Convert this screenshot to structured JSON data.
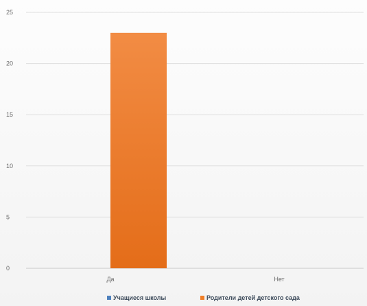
{
  "chart_data": {
    "type": "bar",
    "categories": [
      "Да",
      "Нет"
    ],
    "series": [
      {
        "name": "Учащиеся школы",
        "values": [
          0,
          0
        ],
        "color": "#4f81bd"
      },
      {
        "name": "Родители детей детского сада",
        "values": [
          23,
          0
        ],
        "color": "#f07e26"
      }
    ],
    "y_ticks": [
      0,
      5,
      10,
      15,
      20,
      25
    ],
    "ylim": [
      0,
      25
    ],
    "grid": true,
    "legend_position": "bottom"
  }
}
